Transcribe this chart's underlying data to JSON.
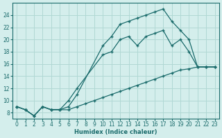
{
  "xlabel": "Humidex (Indice chaleur)",
  "background_color": "#d4eeec",
  "grid_color": "#b0d8d4",
  "line_color": "#1a6b6b",
  "xlim": [
    -0.5,
    23.5
  ],
  "ylim": [
    7,
    26
  ],
  "xticks": [
    0,
    1,
    2,
    3,
    4,
    5,
    6,
    7,
    8,
    9,
    10,
    11,
    12,
    13,
    14,
    15,
    16,
    17,
    18,
    19,
    20,
    21,
    22,
    23
  ],
  "yticks": [
    8,
    10,
    12,
    14,
    16,
    18,
    20,
    22,
    24
  ],
  "curve1_x": [
    0,
    1,
    2,
    3,
    4,
    5,
    6,
    7,
    8,
    9,
    10,
    11,
    12,
    13,
    14,
    15,
    16,
    17,
    18,
    19,
    20,
    21,
    22,
    23
  ],
  "curve1_y": [
    9,
    8.5,
    7.5,
    9,
    8.5,
    8.5,
    8.5,
    9,
    9.5,
    10,
    10.5,
    11,
    11.5,
    12,
    12.5,
    13,
    13.5,
    14,
    14.5,
    15,
    15.2,
    15.5,
    15.5,
    15.5
  ],
  "curve2_x": [
    0,
    1,
    2,
    3,
    4,
    5,
    6,
    7,
    10,
    11,
    12,
    13,
    14,
    15,
    16,
    17,
    18,
    19,
    20,
    21,
    22,
    23
  ],
  "curve2_y": [
    9,
    8.5,
    7.5,
    9,
    8.5,
    8.5,
    10,
    12,
    17.5,
    18,
    20,
    20.5,
    19,
    20.5,
    21,
    21.5,
    19,
    20,
    18,
    15.5,
    15.5,
    15.5
  ],
  "curve3_x": [
    0,
    1,
    2,
    3,
    4,
    5,
    6,
    7,
    10,
    11,
    12,
    13,
    14,
    15,
    16,
    17,
    18,
    19,
    20,
    21,
    22,
    23
  ],
  "curve3_y": [
    9,
    8.5,
    7.5,
    9,
    8.5,
    8.5,
    9,
    11,
    19,
    20.5,
    22.5,
    23,
    23.5,
    24,
    24.5,
    25,
    23,
    21.5,
    20,
    15.5,
    15.5,
    15.5
  ]
}
